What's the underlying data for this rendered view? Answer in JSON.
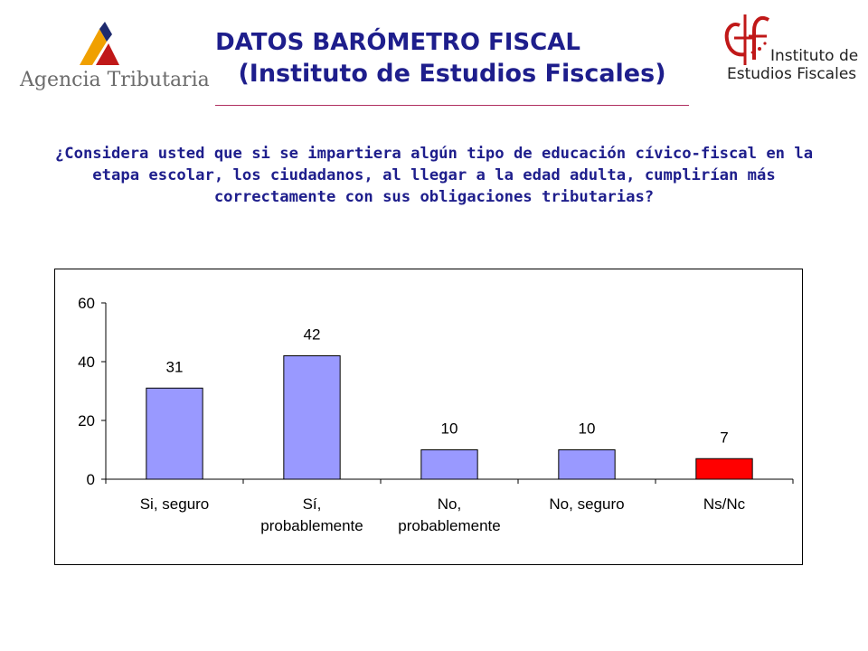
{
  "header": {
    "left_logo_text": "Agencia Tributaria",
    "title_line1": "DATOS BARÓMETRO FISCAL",
    "title_line2": "(Instituto de Estudios Fiscales)",
    "right_logo_line1": "Instituto de",
    "right_logo_line2": "Estudios Fiscales"
  },
  "question": "¿Considera usted que si se impartiera algún tipo de educación cívico-fiscal en la etapa escolar, los ciudadanos, al llegar a la edad adulta, cumplirían más correctamente con sus obligaciones tributarias?",
  "colors": {
    "title": "#1e1e8c",
    "bar": "#9999ff",
    "bar_highlight": "#ff0000",
    "logo_orange": "#f0a000",
    "logo_red": "#c01818"
  },
  "chart_data": {
    "type": "bar",
    "categories": [
      [
        "Si, seguro"
      ],
      [
        "Sí,",
        "probablemente"
      ],
      [
        "No,",
        "probablemente"
      ],
      [
        "No, seguro"
      ],
      [
        "Ns/Nc"
      ]
    ],
    "values": [
      31,
      42,
      10,
      10,
      7
    ],
    "value_labels": [
      "31",
      "42",
      "10",
      "10",
      "7"
    ],
    "bar_colors": [
      "#9999ff",
      "#9999ff",
      "#9999ff",
      "#9999ff",
      "#ff0000"
    ],
    "ylim": [
      0,
      60
    ],
    "yticks": [
      0,
      20,
      40,
      60
    ],
    "title": "",
    "xlabel": "",
    "ylabel": "",
    "grid": false,
    "legend": "none"
  }
}
